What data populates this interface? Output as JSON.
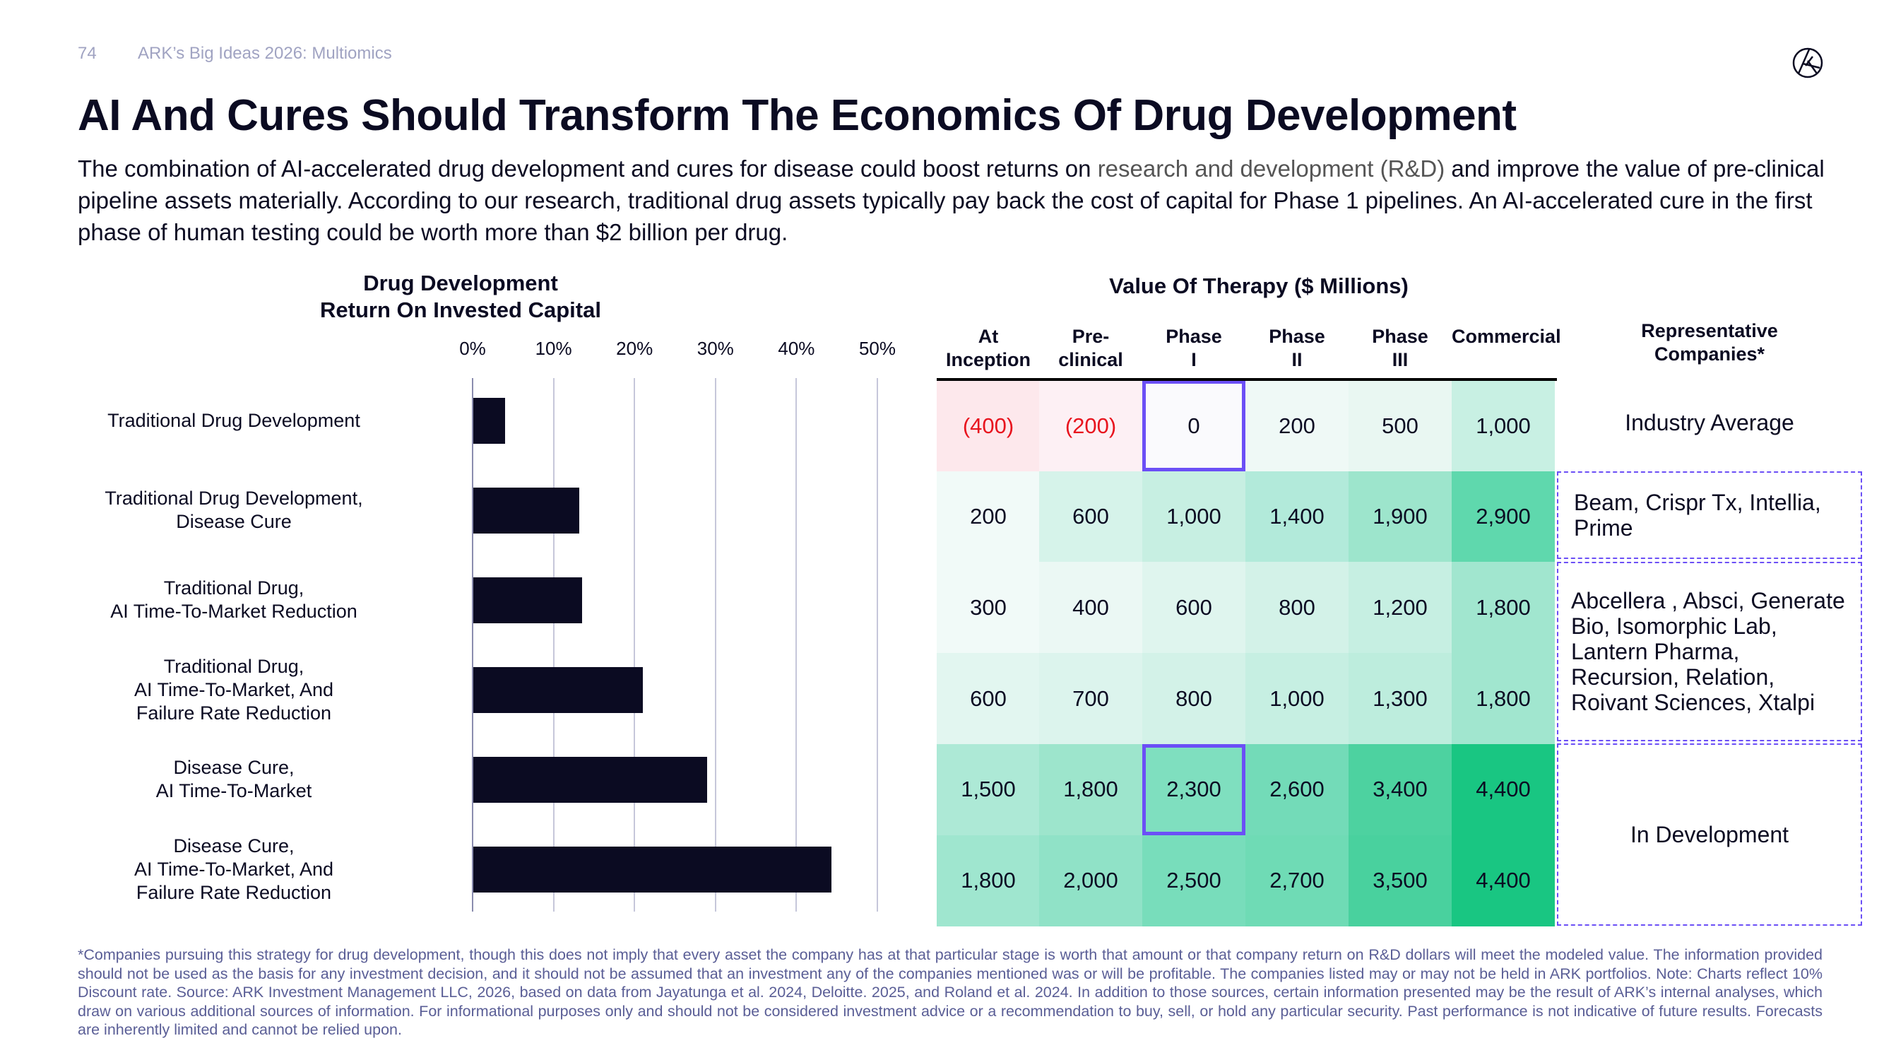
{
  "header": {
    "page_number": "74",
    "section": "ARK’s Big Ideas 2026: Multiomics",
    "logo": "ark-logo"
  },
  "title": "AI And Cures Should Transform The Economics Of Drug Development",
  "intro": {
    "part1": "The combination of AI-accelerated drug development and cures for disease could boost returns on ",
    "part2": "research and development (R&D)",
    "part3": " and improve the value of pre-clinical pipeline assets materially. According to our research, traditional drug assets typically pay back the cost of capital for Phase 1 pipelines. An AI-accelerated cure in the first phase of human testing could be worth more than $2 billion per drug."
  },
  "colors": {
    "bar": "#0b0b22",
    "highlight_border": "#6b4ff6",
    "negative_text": "#e8141e",
    "grid": "#c6c7da",
    "footnote": "#5a5e96"
  },
  "chart_data": [
    {
      "type": "bar",
      "orientation": "horizontal",
      "title_lines": [
        "Drug Development",
        "Return On Invested Capital"
      ],
      "categories": [
        [
          "Traditional Drug Development"
        ],
        [
          "Traditional Drug Development,",
          "Disease Cure"
        ],
        [
          "Traditional Drug,",
          "AI Time-To-Market Reduction"
        ],
        [
          "Traditional Drug,",
          "AI Time-To-Market, And",
          "Failure Rate Reduction"
        ],
        [
          "Disease Cure,",
          "AI Time-To-Market"
        ],
        [
          "Disease Cure,",
          "AI Time-To-Market, And",
          "Failure Rate Reduction"
        ]
      ],
      "values": [
        3.9,
        13.1,
        13.4,
        20.9,
        28.9,
        44.2
      ],
      "unit": "%",
      "xlim": [
        0,
        50
      ],
      "ticks": [
        "0%",
        "10%",
        "20%",
        "30%",
        "40%",
        "50%"
      ],
      "tick_values": [
        0,
        10,
        20,
        30,
        40,
        50
      ],
      "grid": true,
      "axis_position": "top"
    },
    {
      "type": "table",
      "title": "Value Of Therapy ($ Millions)",
      "columns": [
        [
          "At",
          "Inception"
        ],
        [
          "Pre-",
          "clinical"
        ],
        [
          "Phase",
          "I"
        ],
        [
          "Phase",
          "II"
        ],
        [
          "Phase",
          "III"
        ],
        [
          "Commercial"
        ]
      ],
      "rows": [
        {
          "values": [
            "(400)",
            "(200)",
            "0",
            "200",
            "500",
            "1,000"
          ],
          "colors": [
            "#fde8ec",
            "#fdf0f4",
            "#fafafd",
            "#eff9f6",
            "#e9f7f2",
            "#c8f0e3"
          ],
          "negative": [
            true,
            true,
            false,
            false,
            false,
            false
          ],
          "highlight": [
            false,
            false,
            true,
            false,
            false,
            false
          ]
        },
        {
          "values": [
            "200",
            "600",
            "1,000",
            "1,400",
            "1,900",
            "2,900"
          ],
          "colors": [
            "#f1faf8",
            "#d6f3ea",
            "#c7efe2",
            "#b2eada",
            "#9de5cc",
            "#5fd8ad"
          ]
        },
        {
          "values": [
            "300",
            "400",
            "600",
            "800",
            "1,200",
            "1,800"
          ],
          "colors": [
            "#f1faf8",
            "#ebf8f4",
            "#dff5ee",
            "#d3f2e8",
            "#c6efe2",
            "#a1e6cf"
          ]
        },
        {
          "values": [
            "600",
            "700",
            "800",
            "1,000",
            "1,300",
            "1,800"
          ],
          "colors": [
            "#e2f6f0",
            "#dcf4ed",
            "#d3f2e8",
            "#c6efe2",
            "#bdeddd",
            "#a1e6cf"
          ]
        },
        {
          "values": [
            "1,500",
            "1,800",
            "2,300",
            "2,600",
            "3,400",
            "4,400"
          ],
          "colors": [
            "#ade9d6",
            "#9de5cc",
            "#7fdfbf",
            "#73dbb8",
            "#4dd2a0",
            "#19c682"
          ],
          "highlight": [
            false,
            false,
            true,
            false,
            false,
            false
          ]
        },
        {
          "values": [
            "1,800",
            "2,000",
            "2,500",
            "2,700",
            "3,500",
            "4,400"
          ],
          "colors": [
            "#9fe6cf",
            "#90e2c7",
            "#78ddbb",
            "#6fdbb5",
            "#49d19e",
            "#19c682"
          ]
        }
      ],
      "representative_header": [
        "Representative",
        "Companies*"
      ],
      "representative": [
        {
          "text": "Industry Average",
          "rows": "1"
        },
        {
          "text": "Beam, Crispr Tx, Intellia, Prime",
          "rows": "2"
        },
        {
          "text": "Abcellera , Absci, Generate Bio, Isomorphic Lab, Lantern Pharma, Recursion, Relation, Roivant Sciences, Xtalpi",
          "rows": "3-4"
        },
        {
          "text": "In Development",
          "rows": "5-6"
        }
      ]
    }
  ],
  "footnote": "*Companies pursuing this strategy for drug development, though this does not imply that every asset the company has at that particular stage is worth that amount or that company return on R&D dollars will meet the modeled value. The information provided should not be used as the basis for any investment decision, and it should not be assumed that an investment any of the companies mentioned was or will be profitable. The companies listed may or may not be held in ARK portfolios. Note: Charts reflect 10% Discount rate. Source: ARK Investment Management LLC, 2026, based on data from Jayatunga et al. 2024, Deloitte. 2025, and Roland et al. 2024. In addition to those sources, certain information presented may be the result of ARK’s internal analyses, which draw on various additional sources of information. For informational purposes only and should not be considered investment advice or a recommendation to buy, sell, or hold any particular security. Past performance is not indicative of future results. Forecasts are inherently limited and cannot be relied upon."
}
